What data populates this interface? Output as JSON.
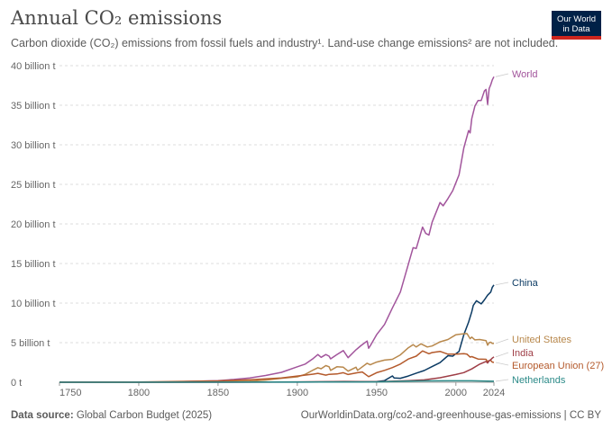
{
  "header": {
    "title": "Annual CO₂ emissions",
    "subtitle": "Carbon dioxide (CO₂) emissions from fossil fuels and industry¹. Land-use change emissions² are not included."
  },
  "logo": {
    "line1": "Our World",
    "line2": "in Data",
    "bg_color": "#002147",
    "accent_color": "#ce261e"
  },
  "footer": {
    "source_label": "Data source:",
    "source_value": "Global Carbon Budget (2025)",
    "url": "OurWorldinData.org/co2-and-greenhouse-gas-emissions",
    "license": "| CC BY"
  },
  "chart_data": {
    "type": "line",
    "x_ticks": [
      1750,
      1800,
      1850,
      1900,
      1950,
      2000,
      2024
    ],
    "y_ticks": [
      {
        "value": 0,
        "label": "0 t"
      },
      {
        "value": 5,
        "label": "5 billion t"
      },
      {
        "value": 10,
        "label": "10 billion t"
      },
      {
        "value": 15,
        "label": "15 billion t"
      },
      {
        "value": 20,
        "label": "20 billion t"
      },
      {
        "value": 25,
        "label": "25 billion t"
      },
      {
        "value": 30,
        "label": "30 billion t"
      },
      {
        "value": 35,
        "label": "35 billion t"
      },
      {
        "value": 40,
        "label": "40 billion t"
      }
    ],
    "xlim": [
      1750,
      2024
    ],
    "ylim": [
      0,
      40
    ],
    "y_unit": "billion t",
    "grid": "horizontal dashed",
    "legend": "line-end labels on right",
    "series": [
      {
        "name": "World",
        "color": "#a2559c",
        "points": [
          [
            1750,
            0.01
          ],
          [
            1800,
            0.03
          ],
          [
            1820,
            0.05
          ],
          [
            1850,
            0.2
          ],
          [
            1860,
            0.35
          ],
          [
            1870,
            0.55
          ],
          [
            1880,
            0.85
          ],
          [
            1890,
            1.25
          ],
          [
            1900,
            1.95
          ],
          [
            1905,
            2.3
          ],
          [
            1910,
            3.0
          ],
          [
            1913,
            3.5
          ],
          [
            1915,
            3.15
          ],
          [
            1918,
            3.5
          ],
          [
            1920,
            3.3
          ],
          [
            1921,
            2.95
          ],
          [
            1925,
            3.5
          ],
          [
            1929,
            4.0
          ],
          [
            1932,
            3.1
          ],
          [
            1937,
            4.1
          ],
          [
            1940,
            4.6
          ],
          [
            1944,
            5.2
          ],
          [
            1945,
            4.3
          ],
          [
            1946,
            4.6
          ],
          [
            1950,
            6.0
          ],
          [
            1955,
            7.3
          ],
          [
            1960,
            9.4
          ],
          [
            1965,
            11.4
          ],
          [
            1970,
            14.9
          ],
          [
            1973,
            17.0
          ],
          [
            1975,
            16.9
          ],
          [
            1979,
            19.6
          ],
          [
            1981,
            18.8
          ],
          [
            1983,
            18.6
          ],
          [
            1985,
            20.2
          ],
          [
            1990,
            22.7
          ],
          [
            1992,
            22.3
          ],
          [
            1995,
            23.2
          ],
          [
            1998,
            24.2
          ],
          [
            2000,
            25.2
          ],
          [
            2002,
            26.2
          ],
          [
            2005,
            29.6
          ],
          [
            2008,
            31.8
          ],
          [
            2009,
            31.5
          ],
          [
            2010,
            33.3
          ],
          [
            2012,
            34.9
          ],
          [
            2014,
            35.6
          ],
          [
            2016,
            35.6
          ],
          [
            2018,
            36.8
          ],
          [
            2019,
            37.0
          ],
          [
            2020,
            35.1
          ],
          [
            2021,
            37.1
          ],
          [
            2022,
            37.6
          ],
          [
            2023,
            38.2
          ],
          [
            2024,
            38.6
          ]
        ]
      },
      {
        "name": "China",
        "color": "#0b3a63",
        "points": [
          [
            1750,
            0
          ],
          [
            1900,
            0.01
          ],
          [
            1940,
            0.05
          ],
          [
            1950,
            0.08
          ],
          [
            1955,
            0.2
          ],
          [
            1960,
            0.8
          ],
          [
            1961,
            0.55
          ],
          [
            1965,
            0.5
          ],
          [
            1970,
            0.78
          ],
          [
            1975,
            1.15
          ],
          [
            1980,
            1.48
          ],
          [
            1985,
            1.98
          ],
          [
            1990,
            2.48
          ],
          [
            1995,
            3.35
          ],
          [
            1998,
            3.3
          ],
          [
            2000,
            3.6
          ],
          [
            2002,
            3.9
          ],
          [
            2005,
            6.0
          ],
          [
            2008,
            7.6
          ],
          [
            2010,
            8.9
          ],
          [
            2011,
            9.7
          ],
          [
            2013,
            10.3
          ],
          [
            2016,
            9.9
          ],
          [
            2018,
            10.4
          ],
          [
            2020,
            11.0
          ],
          [
            2022,
            11.4
          ],
          [
            2023,
            12.0
          ],
          [
            2024,
            12.3
          ]
        ]
      },
      {
        "name": "United States",
        "color": "#b8884c",
        "points": [
          [
            1750,
            0
          ],
          [
            1800,
            0.003
          ],
          [
            1850,
            0.05
          ],
          [
            1870,
            0.15
          ],
          [
            1880,
            0.27
          ],
          [
            1890,
            0.5
          ],
          [
            1900,
            0.68
          ],
          [
            1905,
            1.0
          ],
          [
            1910,
            1.55
          ],
          [
            1913,
            1.84
          ],
          [
            1915,
            1.7
          ],
          [
            1918,
            2.1
          ],
          [
            1920,
            1.95
          ],
          [
            1921,
            1.5
          ],
          [
            1925,
            1.95
          ],
          [
            1929,
            1.9
          ],
          [
            1932,
            1.4
          ],
          [
            1937,
            1.9
          ],
          [
            1938,
            1.5
          ],
          [
            1940,
            1.8
          ],
          [
            1944,
            2.4
          ],
          [
            1946,
            2.2
          ],
          [
            1950,
            2.55
          ],
          [
            1955,
            2.8
          ],
          [
            1960,
            2.9
          ],
          [
            1965,
            3.45
          ],
          [
            1970,
            4.35
          ],
          [
            1973,
            4.75
          ],
          [
            1975,
            4.45
          ],
          [
            1978,
            4.85
          ],
          [
            1982,
            4.45
          ],
          [
            1985,
            4.58
          ],
          [
            1990,
            5.1
          ],
          [
            1995,
            5.4
          ],
          [
            2000,
            6.0
          ],
          [
            2005,
            6.13
          ],
          [
            2007,
            6.15
          ],
          [
            2009,
            5.5
          ],
          [
            2010,
            5.7
          ],
          [
            2012,
            5.35
          ],
          [
            2015,
            5.4
          ],
          [
            2019,
            5.26
          ],
          [
            2020,
            4.68
          ],
          [
            2021,
            5.0
          ],
          [
            2022,
            5.06
          ],
          [
            2023,
            4.9
          ],
          [
            2024,
            4.9
          ]
        ]
      },
      {
        "name": "European Union (27)",
        "color": "#b45a2c",
        "points": [
          [
            1750,
            0.01
          ],
          [
            1800,
            0.03
          ],
          [
            1850,
            0.17
          ],
          [
            1870,
            0.32
          ],
          [
            1890,
            0.55
          ],
          [
            1900,
            0.78
          ],
          [
            1910,
            1.02
          ],
          [
            1913,
            1.12
          ],
          [
            1918,
            0.9
          ],
          [
            1920,
            1.0
          ],
          [
            1925,
            1.05
          ],
          [
            1929,
            1.2
          ],
          [
            1932,
            0.98
          ],
          [
            1938,
            1.2
          ],
          [
            1941,
            1.3
          ],
          [
            1945,
            0.7
          ],
          [
            1950,
            1.2
          ],
          [
            1955,
            1.5
          ],
          [
            1960,
            1.85
          ],
          [
            1965,
            2.3
          ],
          [
            1970,
            2.93
          ],
          [
            1975,
            3.3
          ],
          [
            1979,
            3.95
          ],
          [
            1983,
            3.6
          ],
          [
            1985,
            3.75
          ],
          [
            1990,
            3.9
          ],
          [
            1995,
            3.55
          ],
          [
            2000,
            3.55
          ],
          [
            2005,
            3.6
          ],
          [
            2007,
            3.55
          ],
          [
            2009,
            3.17
          ],
          [
            2010,
            3.24
          ],
          [
            2014,
            2.93
          ],
          [
            2019,
            2.9
          ],
          [
            2020,
            2.6
          ],
          [
            2021,
            2.75
          ],
          [
            2022,
            2.75
          ],
          [
            2023,
            2.55
          ],
          [
            2024,
            2.5
          ]
        ]
      },
      {
        "name": "India",
        "color": "#9e3d46",
        "points": [
          [
            1750,
            0
          ],
          [
            1850,
            0.003
          ],
          [
            1900,
            0.05
          ],
          [
            1930,
            0.1
          ],
          [
            1950,
            0.07
          ],
          [
            1960,
            0.12
          ],
          [
            1970,
            0.2
          ],
          [
            1980,
            0.3
          ],
          [
            1990,
            0.57
          ],
          [
            2000,
            0.98
          ],
          [
            2005,
            1.22
          ],
          [
            2010,
            1.68
          ],
          [
            2015,
            2.28
          ],
          [
            2019,
            2.62
          ],
          [
            2020,
            2.43
          ],
          [
            2021,
            2.7
          ],
          [
            2022,
            2.85
          ],
          [
            2023,
            3.05
          ],
          [
            2024,
            3.2
          ]
        ]
      },
      {
        "name": "Netherlands",
        "color": "#2b8a88",
        "points": [
          [
            1750,
            0.002
          ],
          [
            1850,
            0.015
          ],
          [
            1900,
            0.03
          ],
          [
            1950,
            0.05
          ],
          [
            1970,
            0.14
          ],
          [
            1980,
            0.17
          ],
          [
            1996,
            0.18
          ],
          [
            2010,
            0.18
          ],
          [
            2020,
            0.14
          ],
          [
            2024,
            0.12
          ]
        ]
      }
    ]
  }
}
